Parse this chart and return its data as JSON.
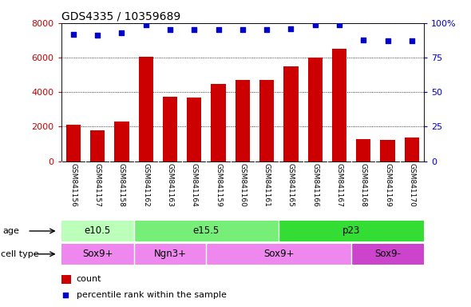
{
  "title": "GDS4335 / 10359689",
  "samples": [
    "GSM841156",
    "GSM841157",
    "GSM841158",
    "GSM841162",
    "GSM841163",
    "GSM841164",
    "GSM841159",
    "GSM841160",
    "GSM841161",
    "GSM841165",
    "GSM841166",
    "GSM841167",
    "GSM841168",
    "GSM841169",
    "GSM841170"
  ],
  "counts": [
    2100,
    1800,
    2300,
    6050,
    3750,
    3700,
    4450,
    4700,
    4700,
    5500,
    6000,
    6500,
    1300,
    1250,
    1350
  ],
  "percentile_ranks": [
    92,
    91,
    93,
    99,
    95,
    95,
    95,
    95,
    95,
    96,
    99,
    99,
    88,
    87,
    87
  ],
  "ylim_left": [
    0,
    8000
  ],
  "ylim_right": [
    0,
    100
  ],
  "yticks_left": [
    0,
    2000,
    4000,
    6000,
    8000
  ],
  "yticks_right": [
    0,
    25,
    50,
    75,
    100
  ],
  "bar_color": "#cc0000",
  "dot_color": "#0000cc",
  "age_colors": [
    "#bbffbb",
    "#77ee77",
    "#33dd33"
  ],
  "cell_colors": [
    "#ee88ee",
    "#ee88ee",
    "#ee88ee",
    "#cc44cc"
  ],
  "age_groups": [
    {
      "label": "e10.5",
      "start": 0,
      "end": 3
    },
    {
      "label": "e15.5",
      "start": 3,
      "end": 9
    },
    {
      "label": "p23",
      "start": 9,
      "end": 15
    }
  ],
  "cell_type_groups": [
    {
      "label": "Sox9+",
      "start": 0,
      "end": 3
    },
    {
      "label": "Ngn3+",
      "start": 3,
      "end": 6
    },
    {
      "label": "Sox9+",
      "start": 6,
      "end": 12
    },
    {
      "label": "Sox9-",
      "start": 12,
      "end": 15
    }
  ],
  "legend_count_label": "count",
  "legend_pct_label": "percentile rank within the sample",
  "tick_color_left": "#cc0000",
  "tick_color_right": "#0000cc",
  "xlabels_bg": "#cccccc",
  "separator_color": "#ffffff"
}
